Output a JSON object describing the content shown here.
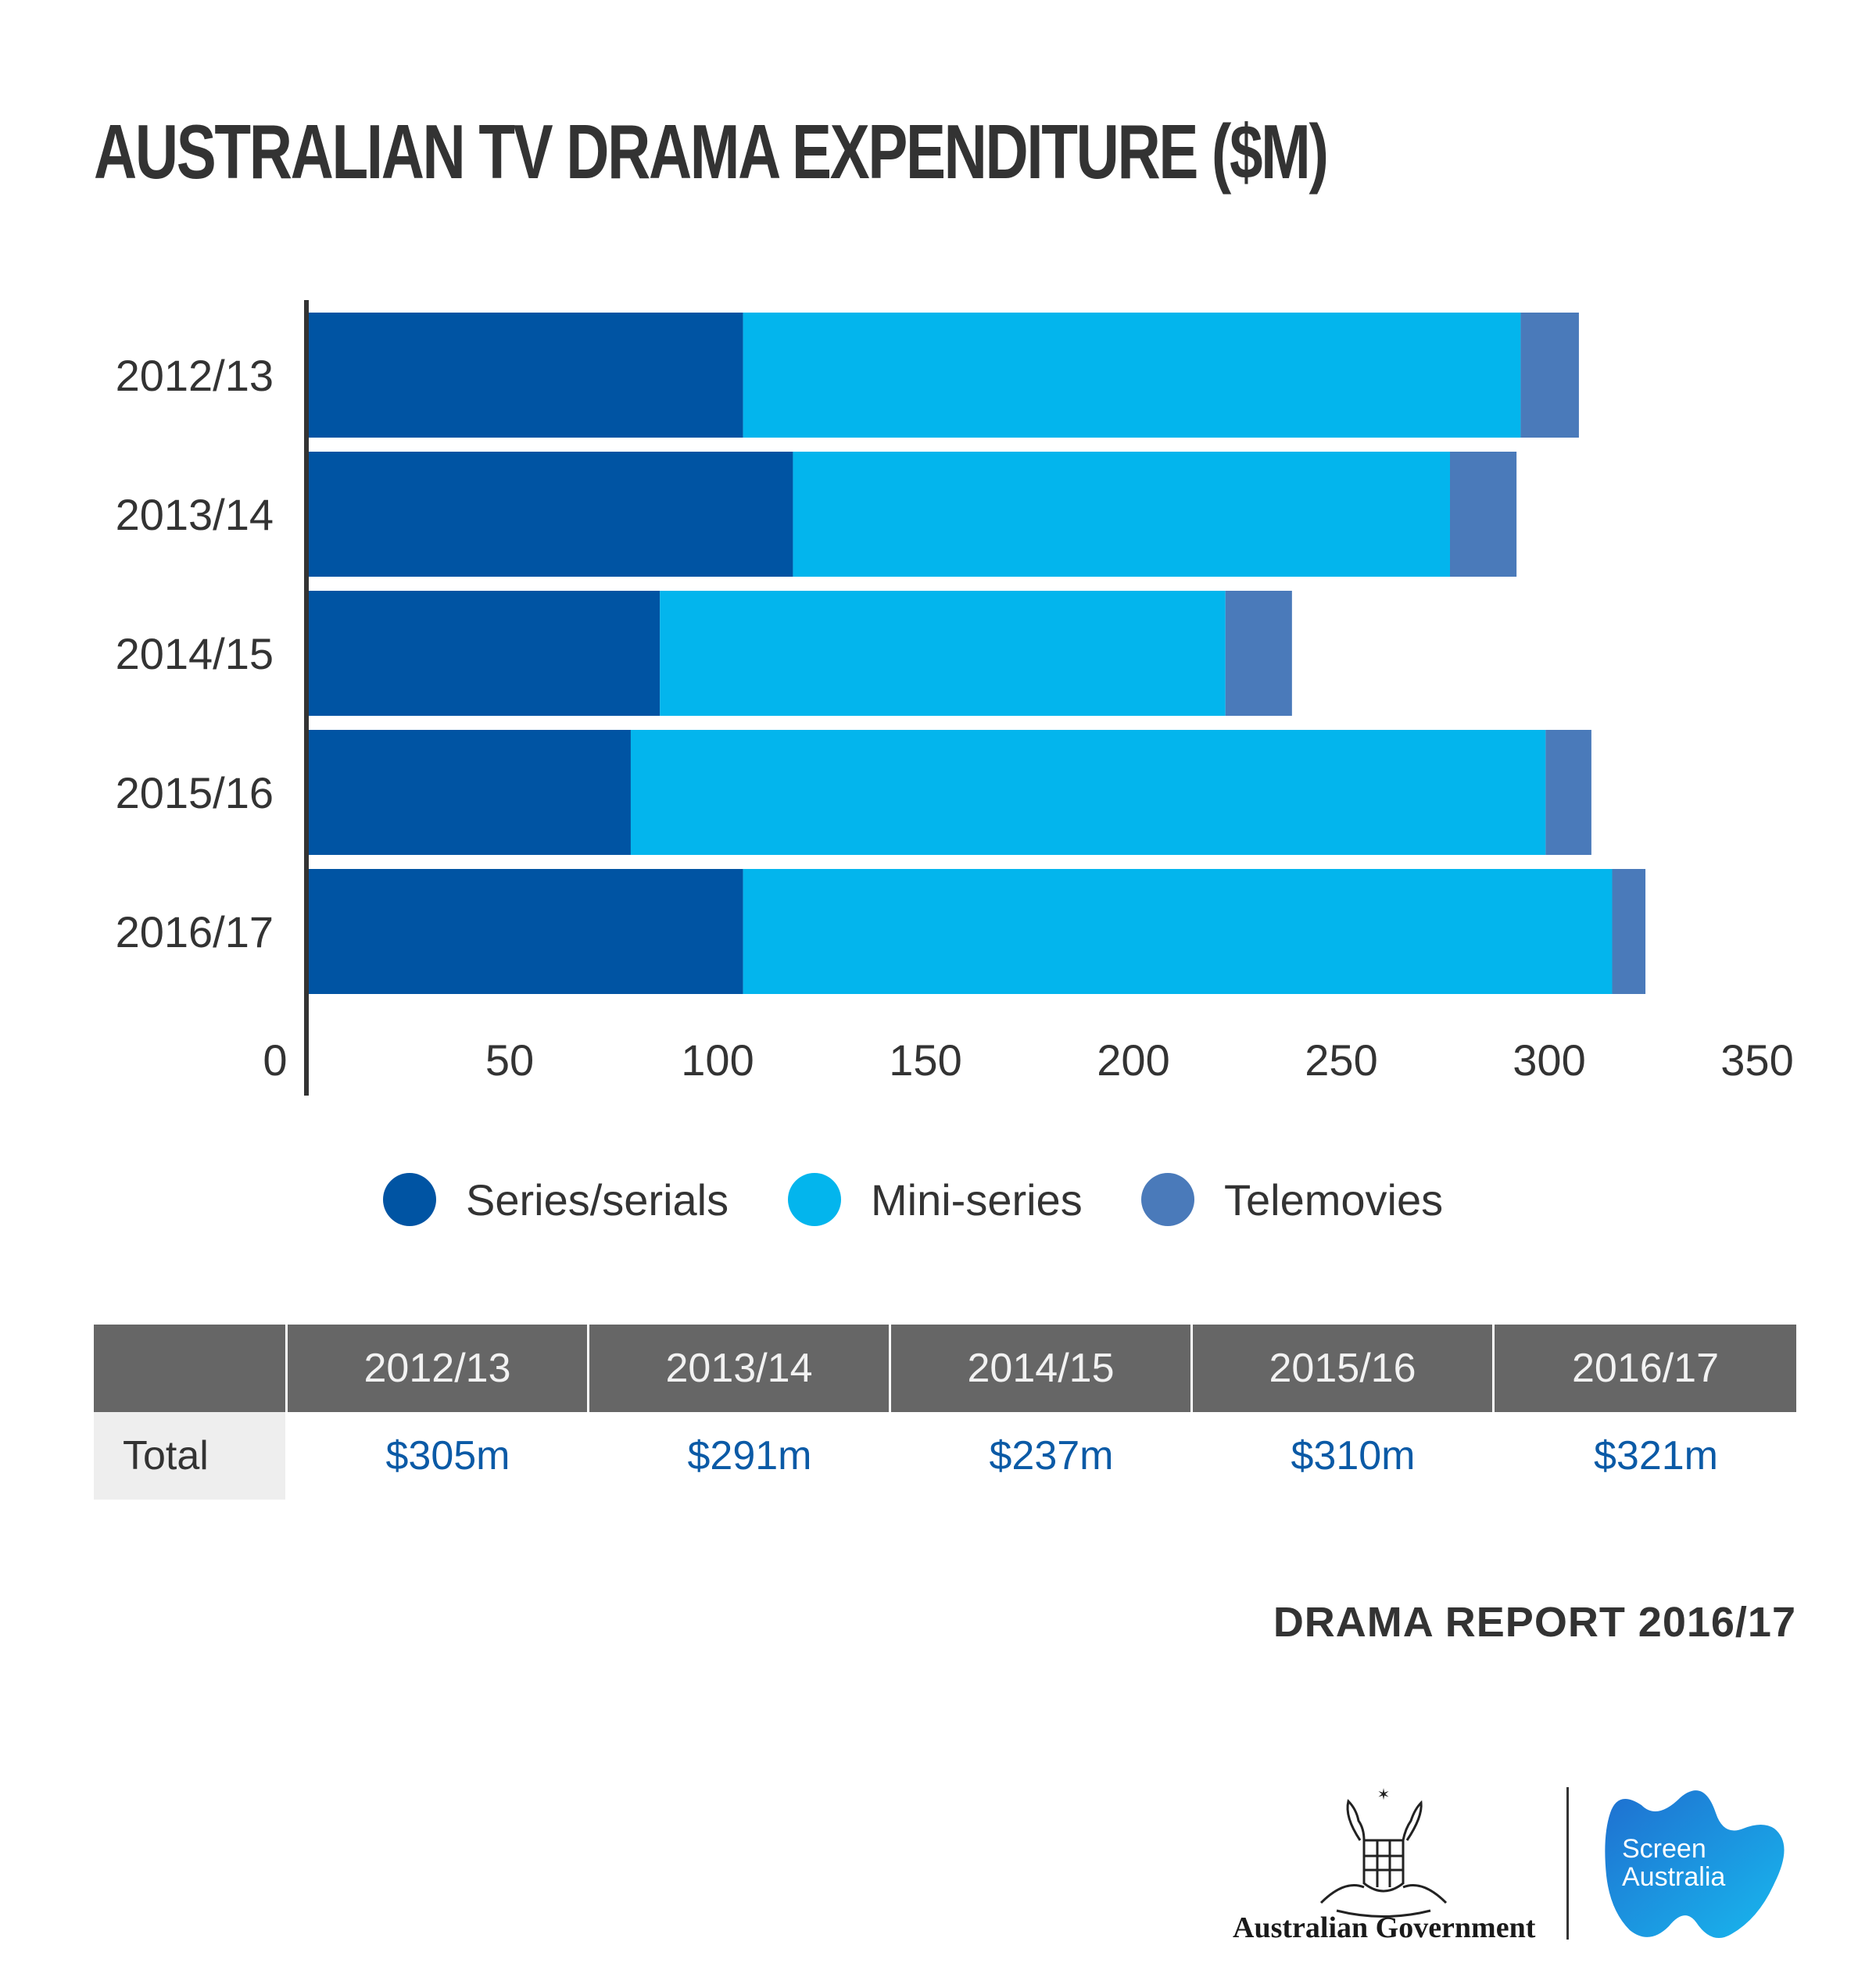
{
  "title": "AUSTRALIAN TV DRAMA EXPENDITURE ($M)",
  "colors": {
    "series_serials": "#0054a3",
    "mini_series": "#03b5ed",
    "telemovies": "#4a7aba",
    "axis": "#333333",
    "table_header": "#666666",
    "total_value": "#0b5aa6"
  },
  "chart_data": {
    "type": "bar",
    "orientation": "horizontal",
    "stacked": true,
    "categories": [
      "2012/13",
      "2013/14",
      "2014/15",
      "2015/16",
      "2016/17"
    ],
    "series": [
      {
        "name": "Series/serials",
        "values": [
          105,
          117,
          85,
          78,
          105
        ]
      },
      {
        "name": "Mini-series",
        "values": [
          187,
          158,
          136,
          220,
          209
        ]
      },
      {
        "name": "Telemovies",
        "values": [
          14,
          16,
          16,
          11,
          8
        ]
      }
    ],
    "xlim": [
      0,
      350
    ],
    "xticks": [
      0,
      50,
      100,
      150,
      200,
      250,
      300,
      350
    ],
    "grid": false,
    "legend_position": "bottom"
  },
  "legend": [
    {
      "label": "Series/serials",
      "color": "#0054a3"
    },
    {
      "label": "Mini-series",
      "color": "#03b5ed"
    },
    {
      "label": "Telemovies",
      "color": "#4a7aba"
    }
  ],
  "totals_table": {
    "headers": [
      "2012/13",
      "2013/14",
      "2014/15",
      "2015/16",
      "2016/17"
    ],
    "row_label": "Total",
    "values": [
      "$305m",
      "$291m",
      "$237m",
      "$310m",
      "$321m"
    ]
  },
  "source": "DRAMA REPORT 2016/17",
  "logos": {
    "government": "Australian Government",
    "screen_australia": "Screen\nAustralia"
  }
}
